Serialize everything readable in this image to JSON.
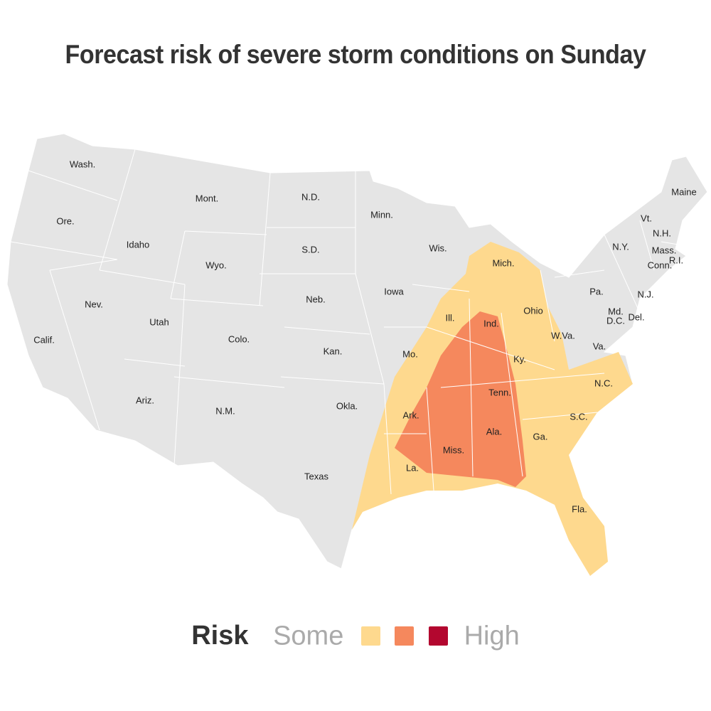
{
  "title": "Forecast risk of severe storm conditions on Sunday",
  "colors": {
    "land": "#e5e5e5",
    "border": "#ffffff",
    "some": "#fed98e",
    "moderate": "#f5885d",
    "high": "#b3072f"
  },
  "states": [
    "Wash.",
    "Ore.",
    "Calif.",
    "Idaho",
    "Nev.",
    "Mont.",
    "Wyo.",
    "Utah",
    "Ariz.",
    "Colo.",
    "N.M.",
    "N.D.",
    "S.D.",
    "Neb.",
    "Kan.",
    "Okla.",
    "Texas",
    "Minn.",
    "Iowa",
    "Mo.",
    "Ark.",
    "La.",
    "Wis.",
    "Ill.",
    "Mich.",
    "Ind.",
    "Ohio",
    "Ky.",
    "Tenn.",
    "Miss.",
    "Ala.",
    "Ga.",
    "Fla.",
    "S.C.",
    "N.C.",
    "Va.",
    "W.Va.",
    "Pa.",
    "N.Y.",
    "Vt.",
    "N.H.",
    "Maine",
    "Mass.",
    "R.I.",
    "Conn.",
    "N.J.",
    "Md.",
    "D.C.",
    "Del."
  ],
  "legend": {
    "title": "Risk",
    "low_label": "Some",
    "high_label": "High",
    "levels": [
      "some",
      "moderate",
      "high"
    ]
  }
}
